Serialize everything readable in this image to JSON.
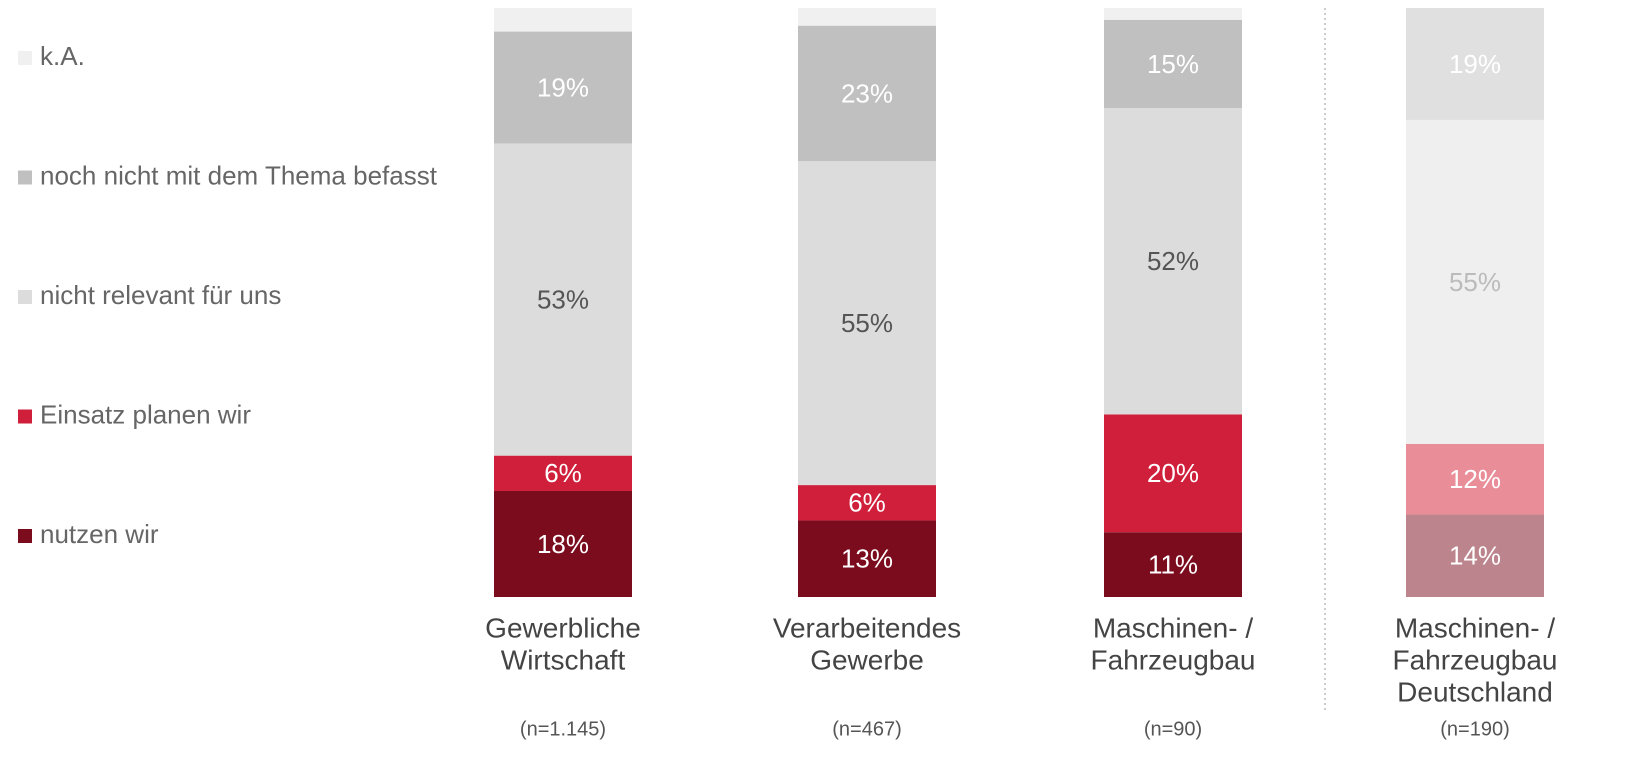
{
  "chart_data": {
    "type": "stacked_bar",
    "categories": [
      [
        "Gewerbliche",
        "Wirtschaft"
      ],
      [
        "Verarbeitendes",
        "Gewerbe"
      ],
      [
        "Maschinen- /",
        "Fahrzeugbau"
      ],
      [
        "Maschinen- /",
        "Fahrzeugbau",
        "Deutschland"
      ]
    ],
    "sample_sizes": [
      "(n=1.145)",
      "(n=467)",
      "(n=90)",
      "(n=190)"
    ],
    "ylim": [
      0,
      100
    ],
    "series": [
      {
        "name": "nutzen wir",
        "colors": [
          "#7b0c1e",
          "#7b0c1e",
          "#7b0c1e",
          "#bc858d"
        ],
        "label_colors": [
          "#ffffff",
          "#ffffff",
          "#ffffff",
          "#ffffff"
        ],
        "values": [
          18,
          13,
          11,
          14
        ],
        "value_labels": [
          "18%",
          "13%",
          "11%",
          "14%"
        ]
      },
      {
        "name": "Einsatz planen wir",
        "colors": [
          "#d01f3a",
          "#d01f3a",
          "#d01f3a",
          "#e98e99"
        ],
        "label_colors": [
          "#ffffff",
          "#ffffff",
          "#ffffff",
          "#ffffff"
        ],
        "values": [
          6,
          6,
          20,
          12
        ],
        "value_labels": [
          "6%",
          "6%",
          "20%",
          "12%"
        ]
      },
      {
        "name": "nicht relevant für uns",
        "colors": [
          "#dcdcdc",
          "#dcdcdc",
          "#dcdcdc",
          "#efefef"
        ],
        "label_colors": [
          "#555555",
          "#555555",
          "#555555",
          "#bbbbbb"
        ],
        "values": [
          53,
          55,
          52,
          55
        ],
        "value_labels": [
          "53%",
          "55%",
          "52%",
          "55%"
        ]
      },
      {
        "name": "noch nicht mit dem Thema befasst",
        "colors": [
          "#c0c0c0",
          "#c0c0c0",
          "#c0c0c0",
          "#e0e0e0"
        ],
        "label_colors": [
          "#ffffff",
          "#ffffff",
          "#ffffff",
          "#ffffff"
        ],
        "values": [
          19,
          23,
          15,
          19
        ],
        "value_labels": [
          "19%",
          "23%",
          "15%",
          "19%"
        ]
      },
      {
        "name": "k.A.",
        "colors": [
          "#f0f0f0",
          "#f0f0f0",
          "#f0f0f0",
          "#f0f0f0"
        ],
        "values": [
          4,
          3,
          2,
          0
        ]
      }
    ]
  }
}
